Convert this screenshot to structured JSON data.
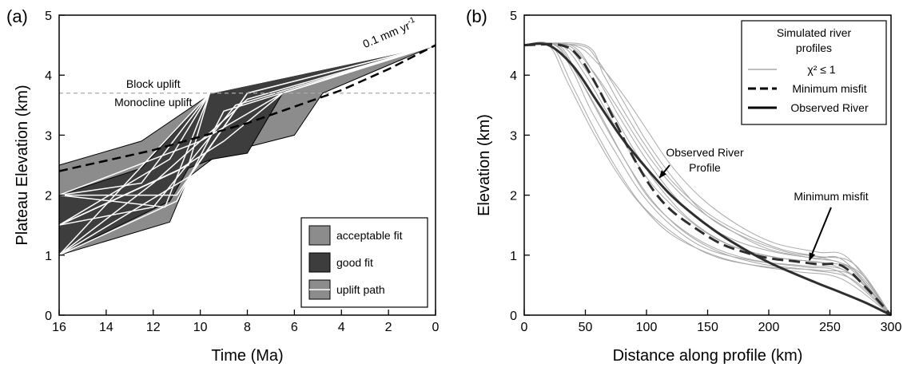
{
  "chart_data": [
    {
      "panel_label": "(a)",
      "type": "area",
      "xlabel": "Time (Ma)",
      "ylabel": "Plateau Elevation (km)",
      "xlim": [
        16,
        0
      ],
      "ylim": [
        0,
        5
      ],
      "x_ticks": [
        16,
        14,
        12,
        10,
        8,
        6,
        4,
        2,
        0
      ],
      "y_ticks": [
        0,
        1,
        2,
        3,
        4,
        5
      ],
      "acceptable_fit_region": [
        [
          16,
          1.0
        ],
        [
          11.3,
          1.55
        ],
        [
          10.5,
          2.3
        ],
        [
          9.5,
          2.6
        ],
        [
          8,
          2.8
        ],
        [
          6,
          3.0
        ],
        [
          4.8,
          3.7
        ],
        [
          0,
          4.5
        ],
        [
          9.5,
          3.7
        ],
        [
          12.5,
          2.9
        ],
        [
          16,
          2.5
        ]
      ],
      "good_fit_region": [
        [
          16,
          1.0
        ],
        [
          11.3,
          1.9
        ],
        [
          10.5,
          2.45
        ],
        [
          9.5,
          2.6
        ],
        [
          8,
          2.7
        ],
        [
          6.5,
          3.7
        ],
        [
          0,
          4.5
        ],
        [
          9.6,
          3.7
        ],
        [
          12.5,
          2.45
        ],
        [
          16,
          2.0
        ]
      ],
      "uplift_paths": [
        [
          [
            16,
            2.0
          ],
          [
            12.5,
            2.2
          ],
          [
            9.6,
            3.7
          ],
          [
            0,
            4.5
          ]
        ],
        [
          [
            16,
            2.0
          ],
          [
            11.0,
            2.0
          ],
          [
            8.0,
            3.7
          ],
          [
            0,
            4.5
          ]
        ],
        [
          [
            16,
            1.5
          ],
          [
            11.3,
            2.6
          ],
          [
            9.6,
            3.7
          ],
          [
            0,
            4.5
          ]
        ],
        [
          [
            16,
            1.5
          ],
          [
            12.0,
            1.8
          ],
          [
            8.5,
            3.5
          ],
          [
            0,
            4.5
          ]
        ],
        [
          [
            16,
            1.0
          ],
          [
            10.5,
            2.3
          ],
          [
            8.0,
            3.7
          ],
          [
            0,
            4.5
          ]
        ],
        [
          [
            16,
            1.0
          ],
          [
            11.5,
            2.9
          ],
          [
            9.6,
            3.7
          ],
          [
            0,
            4.5
          ]
        ],
        [
          [
            16,
            2.0
          ],
          [
            10.0,
            2.9
          ],
          [
            6.5,
            3.7
          ],
          [
            0,
            4.5
          ]
        ],
        [
          [
            16,
            1.5
          ],
          [
            11.0,
            2.4
          ],
          [
            9.0,
            2.9
          ],
          [
            6.5,
            3.7
          ],
          [
            0,
            4.5
          ]
        ],
        [
          [
            16,
            1.0
          ],
          [
            12.0,
            2.2
          ],
          [
            8.0,
            3.6
          ],
          [
            0,
            4.5
          ]
        ],
        [
          [
            16,
            2.0
          ],
          [
            11.5,
            1.8
          ],
          [
            9.6,
            3.7
          ],
          [
            0,
            4.5
          ]
        ],
        [
          [
            16,
            1.5
          ],
          [
            10.5,
            2.5
          ],
          [
            9.6,
            3.7
          ],
          [
            0,
            4.5
          ]
        ],
        [
          [
            16,
            1.0
          ],
          [
            11.0,
            1.9
          ],
          [
            9.0,
            3.4
          ],
          [
            0,
            4.5
          ]
        ]
      ],
      "reference_path": [
        [
          16,
          2.4
        ],
        [
          12,
          2.75
        ],
        [
          8,
          3.2
        ],
        [
          4,
          3.75
        ],
        [
          2,
          4.1
        ],
        [
          0,
          4.5
        ]
      ],
      "threshold_y": 3.7,
      "threshold_label_above": "Block uplift",
      "threshold_label_below": "Monocline uplift",
      "rate_annotation": "0.1 mm yr",
      "rate_annotation_superscript": "-1",
      "legend": {
        "placement": "bottom-right",
        "entries": [
          "acceptable fit",
          "good fit",
          "uplift path"
        ]
      },
      "colors": {
        "acceptable": "#8c8c8c",
        "good": "#3d3d3d",
        "paths": "#ffffff",
        "reference": "#000000",
        "threshold": "#aaaaaa"
      }
    },
    {
      "panel_label": "(b)",
      "type": "line",
      "xlabel": "Distance along profile (km)",
      "ylabel": "Elevation (km)",
      "xlim": [
        0,
        300
      ],
      "ylim": [
        0,
        5
      ],
      "x_ticks": [
        0,
        50,
        100,
        150,
        200,
        250,
        300
      ],
      "y_ticks": [
        0,
        1,
        2,
        3,
        4,
        5
      ],
      "series": [
        {
          "name": "Observed River",
          "style": "solid-thick",
          "x": [
            0,
            20,
            40,
            60,
            80,
            100,
            120,
            140,
            160,
            180,
            200,
            220,
            240,
            260,
            280,
            300
          ],
          "y": [
            4.5,
            4.5,
            4.15,
            3.55,
            2.95,
            2.45,
            2.0,
            1.65,
            1.35,
            1.1,
            0.88,
            0.7,
            0.53,
            0.37,
            0.2,
            0.0
          ]
        },
        {
          "name": "Minimum misfit",
          "style": "dashed-thick",
          "x": [
            0,
            30,
            45,
            60,
            75,
            90,
            105,
            120,
            140,
            160,
            180,
            200,
            220,
            240,
            260,
            280,
            300
          ],
          "y": [
            4.5,
            4.5,
            4.3,
            3.8,
            3.2,
            2.6,
            2.1,
            1.75,
            1.45,
            1.2,
            1.05,
            0.95,
            0.9,
            0.85,
            0.82,
            0.45,
            0.0
          ]
        }
      ],
      "simulated_profiles": [
        {
          "x": [
            0,
            22,
            40,
            60,
            80,
            100,
            130,
            160,
            200,
            240,
            270,
            300
          ],
          "y": [
            4.5,
            4.5,
            3.8,
            3.0,
            2.3,
            1.75,
            1.25,
            0.95,
            0.8,
            0.75,
            0.65,
            0.0
          ]
        },
        {
          "x": [
            0,
            30,
            50,
            70,
            90,
            110,
            140,
            170,
            210,
            250,
            275,
            300
          ],
          "y": [
            4.5,
            4.5,
            4.0,
            3.3,
            2.6,
            2.05,
            1.5,
            1.15,
            0.95,
            0.85,
            0.55,
            0.0
          ]
        },
        {
          "x": [
            0,
            35,
            55,
            75,
            95,
            115,
            140,
            170,
            200,
            235,
            265,
            300
          ],
          "y": [
            4.5,
            4.5,
            4.1,
            3.5,
            2.85,
            2.3,
            1.8,
            1.4,
            1.1,
            0.95,
            0.8,
            0.0
          ]
        },
        {
          "x": [
            0,
            50,
            65,
            80,
            100,
            120,
            150,
            180,
            210,
            240,
            270,
            300
          ],
          "y": [
            4.5,
            4.5,
            4.0,
            3.45,
            2.8,
            2.25,
            1.7,
            1.35,
            1.1,
            0.98,
            0.85,
            0.0
          ]
        },
        {
          "x": [
            0,
            25,
            40,
            55,
            75,
            95,
            120,
            150,
            190,
            230,
            260,
            300
          ],
          "y": [
            4.5,
            4.5,
            4.05,
            3.4,
            2.7,
            2.05,
            1.5,
            1.1,
            0.9,
            0.8,
            0.7,
            0.0
          ]
        },
        {
          "x": [
            0,
            40,
            60,
            80,
            100,
            120,
            145,
            175,
            205,
            240,
            265,
            300
          ],
          "y": [
            4.5,
            4.5,
            4.2,
            3.7,
            3.1,
            2.5,
            1.95,
            1.5,
            1.2,
            1.05,
            0.95,
            0.0
          ]
        },
        {
          "x": [
            0,
            28,
            45,
            65,
            85,
            105,
            130,
            160,
            195,
            235,
            268,
            300
          ],
          "y": [
            4.5,
            4.5,
            3.95,
            3.2,
            2.5,
            1.9,
            1.4,
            1.05,
            0.85,
            0.75,
            0.6,
            0.0
          ]
        },
        {
          "x": [
            0,
            32,
            50,
            70,
            90,
            110,
            135,
            165,
            200,
            240,
            270,
            300
          ],
          "y": [
            4.5,
            4.5,
            4.1,
            3.45,
            2.75,
            2.15,
            1.6,
            1.2,
            0.98,
            0.88,
            0.75,
            0.0
          ]
        },
        {
          "x": [
            0,
            45,
            60,
            80,
            100,
            125,
            150,
            180,
            215,
            245,
            275,
            300
          ],
          "y": [
            4.5,
            4.5,
            4.25,
            3.6,
            2.9,
            2.2,
            1.65,
            1.3,
            1.05,
            0.95,
            0.7,
            0.0
          ]
        },
        {
          "x": [
            0,
            20,
            35,
            55,
            75,
            95,
            120,
            155,
            190,
            225,
            260,
            300
          ],
          "y": [
            4.5,
            4.5,
            3.9,
            3.1,
            2.4,
            1.85,
            1.35,
            1.0,
            0.82,
            0.72,
            0.6,
            0.0
          ]
        },
        {
          "x": [
            0,
            38,
            58,
            78,
            98,
            118,
            142,
            172,
            205,
            238,
            262,
            300
          ],
          "y": [
            4.5,
            4.5,
            4.0,
            3.3,
            2.65,
            2.1,
            1.6,
            1.25,
            1.05,
            0.95,
            0.9,
            0.0
          ]
        },
        {
          "x": [
            0,
            26,
            42,
            62,
            82,
            102,
            128,
            158,
            192,
            230,
            265,
            300
          ],
          "y": [
            4.5,
            4.5,
            4.05,
            3.35,
            2.6,
            1.95,
            1.45,
            1.1,
            0.9,
            0.82,
            0.72,
            0.0
          ]
        }
      ],
      "annotations": [
        {
          "text": [
            "Observed River",
            "Profile"
          ],
          "arrow_to": [
            108,
            2.25
          ]
        },
        {
          "text": [
            "Minimum misfit"
          ],
          "arrow_to": [
            232,
            0.85
          ]
        }
      ],
      "legend": {
        "placement": "top-right",
        "title": [
          "Simulated river",
          "profiles"
        ],
        "entries": [
          {
            "label": "χ² ≤ 1",
            "style": "thin-gray"
          },
          {
            "label": "Minimum misfit",
            "style": "dashed-thick"
          },
          {
            "label": "Observed River",
            "style": "solid-thick"
          }
        ]
      },
      "colors": {
        "simulated": "#a8a8a8",
        "observed": "#2e2e2e",
        "misfit": "#2e2e2e"
      }
    }
  ]
}
